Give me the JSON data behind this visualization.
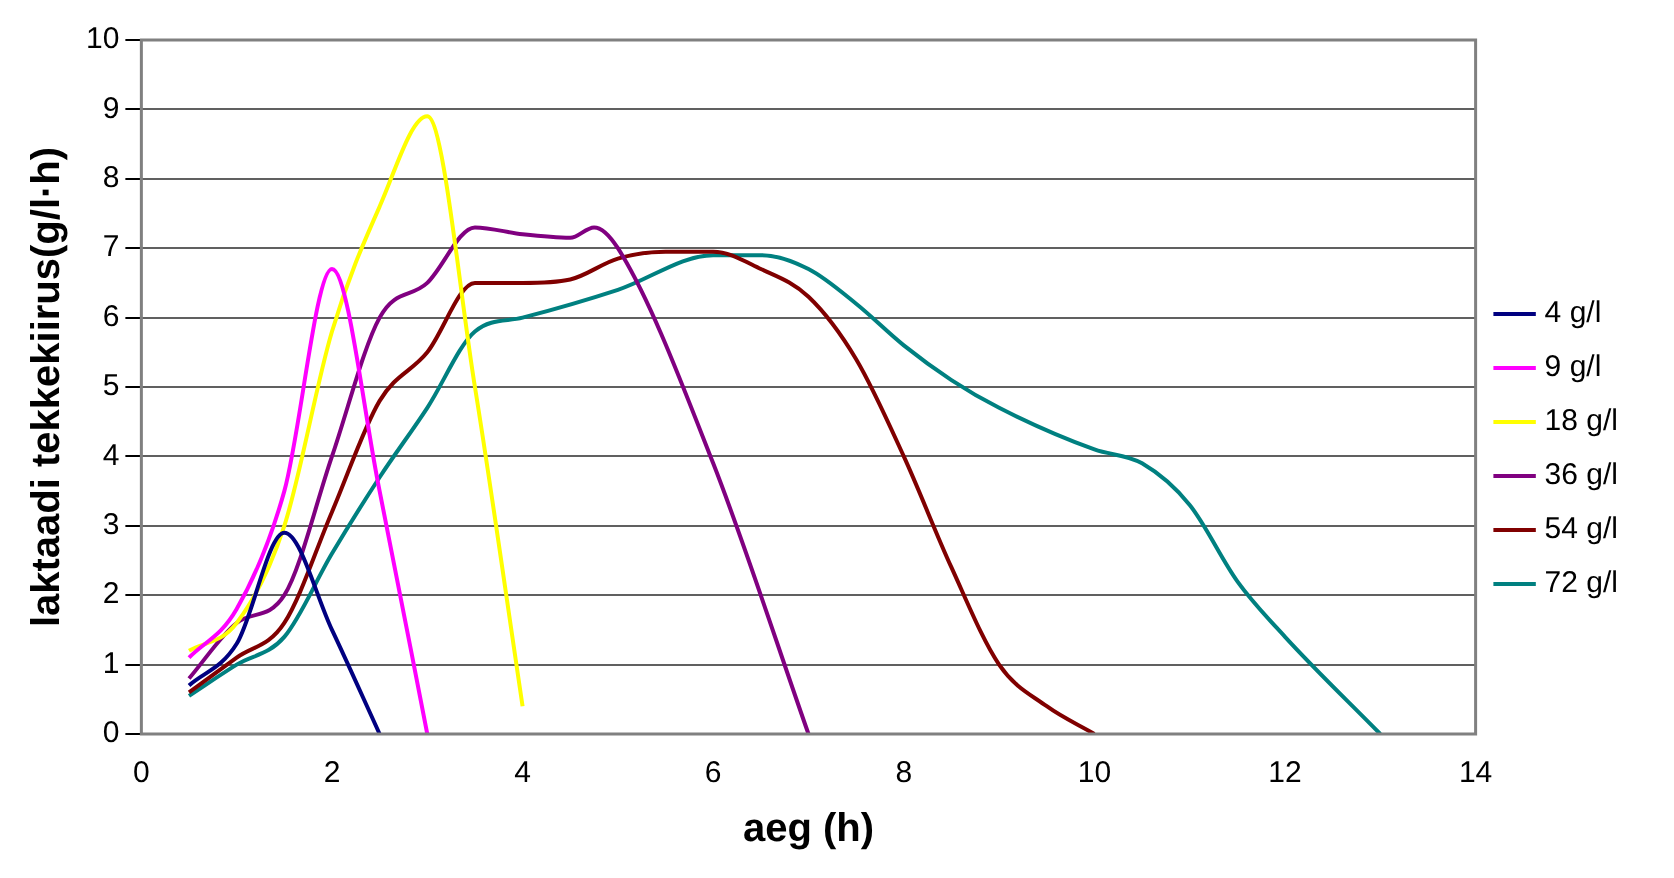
{
  "chart_data": {
    "type": "line",
    "xlabel": "aeg (h)",
    "ylabel": "laktaadi tekkekiirus(g/l·h)",
    "xlim": [
      0,
      14
    ],
    "xticks": [
      0,
      2,
      4,
      6,
      8,
      10,
      12,
      14
    ],
    "ylim": [
      0,
      10
    ],
    "yticks": [
      0,
      1,
      2,
      3,
      4,
      5,
      6,
      7,
      8,
      9,
      10
    ],
    "grid": "y",
    "legend": "right",
    "marker": "none",
    "line_style": "solid",
    "series": [
      {
        "name": "4 g/l",
        "color": "#000080",
        "x": [
          0.5,
          1,
          1.5,
          2,
          2.5
        ],
        "values": [
          0.7,
          1.3,
          2.9,
          1.5,
          0
        ]
      },
      {
        "name": "9 g/l",
        "color": "#ff00ff",
        "x": [
          0.5,
          1,
          1.5,
          2,
          2.5,
          3
        ],
        "values": [
          1.1,
          1.8,
          3.5,
          6.7,
          3.5,
          0
        ]
      },
      {
        "name": "18 g/l",
        "color": "#ffff00",
        "x": [
          0.5,
          1,
          1.5,
          2,
          2.5,
          3,
          3.5,
          4
        ],
        "values": [
          1.2,
          1.6,
          3,
          5.8,
          7.6,
          8.9,
          5,
          0.4
        ]
      },
      {
        "name": "36 g/l",
        "color": "#800080",
        "x": [
          0.5,
          1,
          1.5,
          2,
          2.5,
          3,
          3.5,
          4,
          4.5,
          4.75,
          5,
          6,
          7
        ],
        "values": [
          0.8,
          1.6,
          2,
          4,
          6,
          6.5,
          7.3,
          7.2,
          7.15,
          7.3,
          7,
          3.9,
          0
        ]
      },
      {
        "name": "54 g/l",
        "color": "#800000",
        "x": [
          0.5,
          1,
          1.5,
          2,
          2.5,
          3,
          3.5,
          4,
          4.5,
          5,
          5.5,
          6,
          6.5,
          7,
          7.5,
          8,
          8.5,
          9,
          9.5,
          10
        ],
        "values": [
          0.6,
          1.1,
          1.6,
          3.2,
          4.8,
          5.5,
          6.5,
          6.5,
          6.55,
          6.85,
          6.95,
          6.95,
          6.7,
          6.3,
          5.4,
          4,
          2.4,
          1,
          0.4,
          0
        ]
      },
      {
        "name": "72 g/l",
        "color": "#008080",
        "x": [
          0.5,
          1,
          1.5,
          2,
          2.5,
          3,
          3.5,
          4,
          5,
          6,
          6.5,
          7,
          7.5,
          8,
          8.5,
          9,
          10,
          10.5,
          11,
          11.5,
          12,
          13
        ],
        "values": [
          0.55,
          1,
          1.4,
          2.6,
          3.7,
          4.7,
          5.8,
          6,
          6.4,
          6.9,
          6.9,
          6.7,
          6.2,
          5.6,
          5.1,
          4.7,
          4.1,
          3.9,
          3.3,
          2.2,
          1.4,
          0
        ]
      }
    ]
  }
}
